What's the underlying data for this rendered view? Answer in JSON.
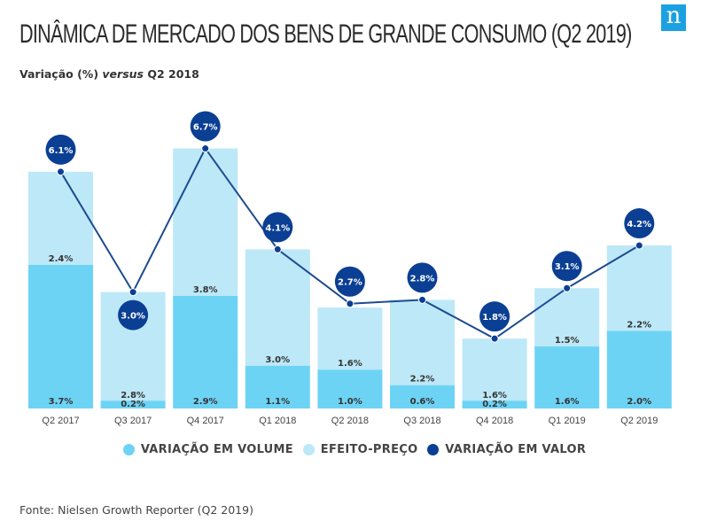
{
  "header": {
    "title": "DINÂMICA DE MERCADO DOS BENS DE GRANDE CONSUMO (Q2 2019)",
    "subtitle_prefix": "Variação (%) ",
    "subtitle_italic": "versus",
    "subtitle_suffix": " Q2 2018",
    "logo_letter": "n",
    "logo_color": "#1ba1e2"
  },
  "colors": {
    "volume": "#6dd3f5",
    "price": "#bde8f8",
    "value": "#0b3f94"
  },
  "chart_data": {
    "type": "bar",
    "stacked": true,
    "title": "DINÂMICA DE MERCADO DOS BENS DE GRANDE CONSUMO (Q2 2019)",
    "subtitle": "Variação (%) versus Q2 2018",
    "xlabel": "",
    "ylabel": "",
    "ylim": [
      0,
      7
    ],
    "grid": false,
    "legend_position": "bottom",
    "categories": [
      "Q2 2017",
      "Q3 2017",
      "Q4 2017",
      "Q1 2018",
      "Q2 2018",
      "Q3 2018",
      "Q4 2018",
      "Q1 2019",
      "Q2 2019"
    ],
    "series": [
      {
        "name": "VARIAÇÃO EM VOLUME",
        "type": "bar",
        "values": [
          3.7,
          0.2,
          2.9,
          1.1,
          1.0,
          0.6,
          0.2,
          1.6,
          2.0
        ],
        "labels": [
          "3.7%",
          "0.2%",
          "2.9%",
          "1.1%",
          "1.0%",
          "0.6%",
          "0.2%",
          "1.6%",
          "2.0%"
        ]
      },
      {
        "name": "EFEITO-PREÇO",
        "type": "bar",
        "values": [
          2.4,
          2.8,
          3.8,
          3.0,
          1.6,
          2.2,
          1.6,
          1.5,
          2.2
        ],
        "labels": [
          "2.4%",
          "2.8%",
          "3.8%",
          "3.0%",
          "1.6%",
          "2.2%",
          "1.6%",
          "1.5%",
          "2.2%"
        ]
      },
      {
        "name": "VARIAÇÃO EM VALOR",
        "type": "line",
        "values": [
          6.1,
          3.0,
          6.7,
          4.1,
          2.7,
          2.8,
          1.8,
          3.1,
          4.2
        ],
        "labels": [
          "6.1%",
          "3.0%",
          "6.7%",
          "4.1%",
          "2.7%",
          "2.8%",
          "1.8%",
          "3.1%",
          "4.2%"
        ]
      }
    ]
  },
  "legend": [
    {
      "label": "VARIAÇÃO EM VOLUME",
      "color": "#6dd3f5"
    },
    {
      "label": "EFEITO-PREÇO",
      "color": "#bde8f8"
    },
    {
      "label": "VARIAÇÃO EM VALOR",
      "color": "#0b3f94"
    }
  ],
  "footer": {
    "source": "Fonte: Nielsen Growth Reporter (Q2 2019)"
  }
}
